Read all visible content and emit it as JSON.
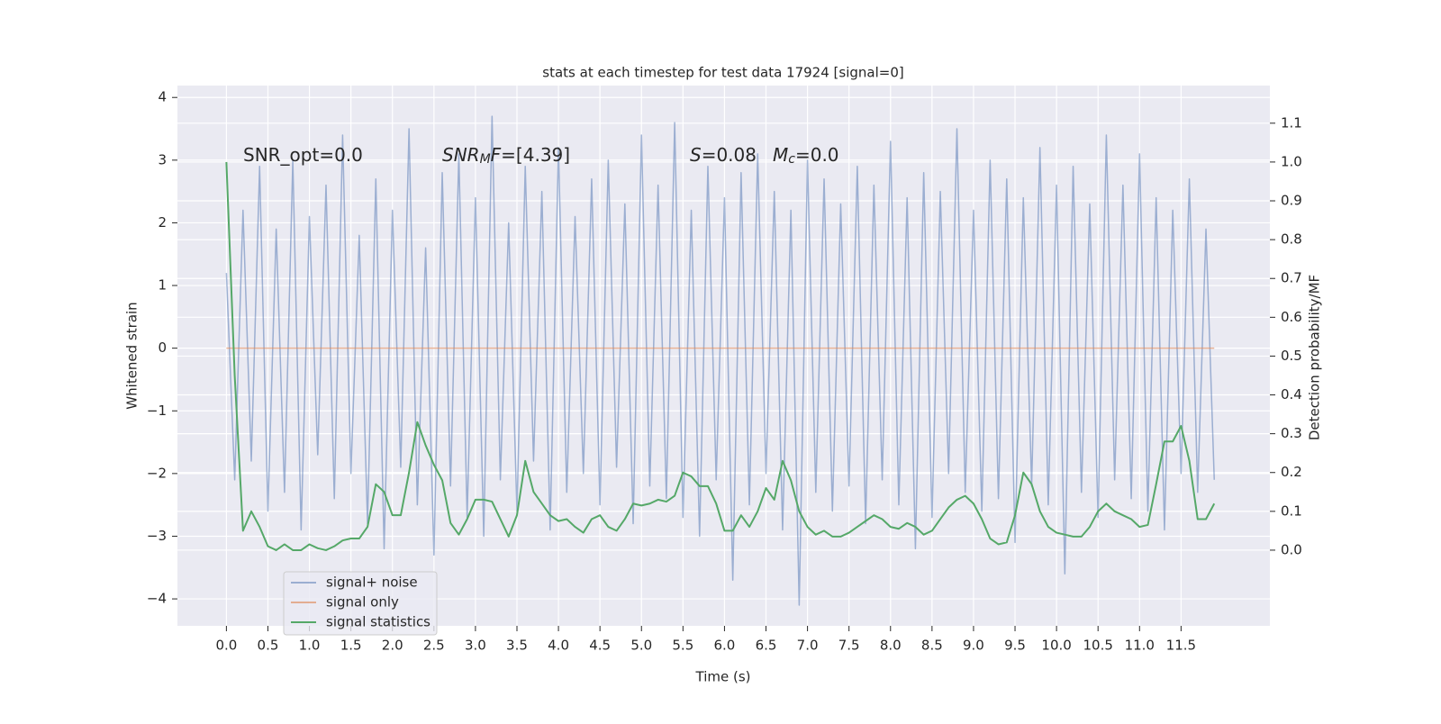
{
  "chart_data": {
    "type": "line",
    "title": "stats at each timestep for test data 17924 [signal=0]",
    "xlabel": "Time (s)",
    "ylabel": "Whitened strain",
    "y2label": "Detection probability/MF",
    "annotations": [
      [
        {
          "text": "SNR_opt=0.0",
          "style": "normal"
        }
      ],
      [
        {
          "text": "SNR",
          "style": "italic"
        },
        {
          "text": "M",
          "style": "sub"
        },
        {
          "text": "F",
          "style": "italic"
        },
        {
          "text": "=[4.39]",
          "style": "normal"
        }
      ],
      [
        {
          "text": "S",
          "style": "italic"
        },
        {
          "text": "=0.08",
          "style": "normal"
        }
      ],
      [
        {
          "text": "M",
          "style": "italic"
        },
        {
          "text": "c",
          "style": "sub"
        },
        {
          "text": "=0.0",
          "style": "normal"
        }
      ]
    ],
    "x": [
      0,
      0.1,
      0.2,
      0.3,
      0.4,
      0.5,
      0.6,
      0.7,
      0.8,
      0.9,
      1.0,
      1.1,
      1.2,
      1.3,
      1.4,
      1.5,
      1.6,
      1.7,
      1.8,
      1.9,
      2.0,
      2.1,
      2.2,
      2.3,
      2.4,
      2.5,
      2.6,
      2.7,
      2.8,
      2.9,
      3.0,
      3.1,
      3.2,
      3.3,
      3.4,
      3.5,
      3.6,
      3.7,
      3.8,
      3.9,
      4.0,
      4.1,
      4.2,
      4.3,
      4.4,
      4.5,
      4.6,
      4.7,
      4.8,
      4.9,
      5.0,
      5.1,
      5.2,
      5.3,
      5.4,
      5.5,
      5.6,
      5.7,
      5.8,
      5.9,
      6.0,
      6.1,
      6.2,
      6.3,
      6.4,
      6.5,
      6.6,
      6.7,
      6.8,
      6.9,
      7.0,
      7.1,
      7.2,
      7.3,
      7.4,
      7.5,
      7.6,
      7.7,
      7.8,
      7.9,
      8.0,
      8.1,
      8.2,
      8.3,
      8.4,
      8.5,
      8.6,
      8.7,
      8.8,
      8.9,
      9.0,
      9.1,
      9.2,
      9.3,
      9.4,
      9.5,
      9.6,
      9.7,
      9.8,
      9.9,
      10.0,
      10.1,
      10.2,
      10.3,
      10.4,
      10.5,
      10.6,
      10.7,
      10.8,
      10.9,
      11.0,
      11.1,
      11.2,
      11.3,
      11.4,
      11.5,
      11.6,
      11.7,
      11.8,
      11.9
    ],
    "series": [
      {
        "name": "signal+ noise",
        "color": "#4c72b0",
        "opacity": 0.5,
        "axis": "y",
        "values": [
          1.2,
          -2.1,
          2.2,
          -1.8,
          2.9,
          -2.6,
          1.9,
          -2.3,
          3.0,
          -2.9,
          2.1,
          -1.7,
          2.6,
          -2.4,
          3.4,
          -2.0,
          1.8,
          -2.8,
          2.7,
          -3.2,
          2.2,
          -1.9,
          3.5,
          -2.5,
          1.6,
          -3.3,
          2.8,
          -2.2,
          3.1,
          -2.7,
          2.4,
          -3.0,
          3.7,
          -2.1,
          2.0,
          -2.6,
          2.9,
          -1.8,
          2.5,
          -2.9,
          3.2,
          -2.3,
          2.1,
          -2.0,
          2.7,
          -2.5,
          3.0,
          -1.9,
          2.3,
          -2.8,
          3.4,
          -2.2,
          2.6,
          -2.4,
          3.6,
          -2.7,
          2.2,
          -3.0,
          2.9,
          -2.1,
          2.4,
          -3.7,
          2.8,
          -2.5,
          3.1,
          -2.0,
          2.5,
          -2.9,
          2.2,
          -4.1,
          3.0,
          -2.3,
          2.7,
          -2.6,
          2.3,
          -2.2,
          2.9,
          -2.8,
          2.6,
          -2.1,
          3.3,
          -2.5,
          2.4,
          -3.2,
          2.8,
          -2.7,
          2.5,
          -2.0,
          3.5,
          -2.3,
          2.2,
          -2.6,
          3.0,
          -2.4,
          2.7,
          -3.1,
          2.4,
          -2.2,
          3.2,
          -2.5,
          2.6,
          -3.6,
          2.9,
          -2.3,
          2.3,
          -2.7,
          3.4,
          -2.1,
          2.6,
          -2.4,
          3.1,
          -2.6,
          2.4,
          -2.9,
          2.2,
          -2.0,
          2.7,
          -2.3,
          1.9,
          -2.1
        ]
      },
      {
        "name": "signal only",
        "color": "#dd8452",
        "opacity": 0.6,
        "axis": "y",
        "values": [
          0,
          0,
          0,
          0,
          0,
          0,
          0,
          0,
          0,
          0,
          0,
          0,
          0,
          0,
          0,
          0,
          0,
          0,
          0,
          0,
          0,
          0,
          0,
          0,
          0,
          0,
          0,
          0,
          0,
          0,
          0,
          0,
          0,
          0,
          0,
          0,
          0,
          0,
          0,
          0,
          0,
          0,
          0,
          0,
          0,
          0,
          0,
          0,
          0,
          0,
          0,
          0,
          0,
          0,
          0,
          0,
          0,
          0,
          0,
          0,
          0,
          0,
          0,
          0,
          0,
          0,
          0,
          0,
          0,
          0,
          0,
          0,
          0,
          0,
          0,
          0,
          0,
          0,
          0,
          0,
          0,
          0,
          0,
          0,
          0,
          0,
          0,
          0,
          0,
          0,
          0,
          0,
          0,
          0,
          0,
          0,
          0,
          0,
          0,
          0,
          0,
          0,
          0,
          0,
          0,
          0,
          0,
          0,
          0,
          0,
          0,
          0,
          0,
          0,
          0,
          0,
          0,
          0,
          0,
          0
        ]
      },
      {
        "name": "signal statistics",
        "color": "#55a868",
        "opacity": 1,
        "axis": "y2",
        "values": [
          1.0,
          0.45,
          0.05,
          0.1,
          0.06,
          0.01,
          0.0,
          0.015,
          0.0,
          0.0,
          0.015,
          0.005,
          0.0,
          0.01,
          0.025,
          0.03,
          0.03,
          0.06,
          0.17,
          0.15,
          0.09,
          0.09,
          0.2,
          0.33,
          0.27,
          0.22,
          0.18,
          0.07,
          0.04,
          0.08,
          0.13,
          0.13,
          0.125,
          0.08,
          0.035,
          0.09,
          0.23,
          0.15,
          0.12,
          0.09,
          0.075,
          0.08,
          0.06,
          0.045,
          0.08,
          0.09,
          0.06,
          0.05,
          0.08,
          0.12,
          0.115,
          0.12,
          0.13,
          0.125,
          0.14,
          0.2,
          0.19,
          0.165,
          0.165,
          0.12,
          0.05,
          0.05,
          0.09,
          0.06,
          0.1,
          0.16,
          0.13,
          0.23,
          0.18,
          0.1,
          0.06,
          0.04,
          0.05,
          0.035,
          0.035,
          0.045,
          0.06,
          0.075,
          0.09,
          0.08,
          0.06,
          0.055,
          0.07,
          0.06,
          0.04,
          0.05,
          0.08,
          0.11,
          0.13,
          0.14,
          0.12,
          0.08,
          0.03,
          0.015,
          0.02,
          0.09,
          0.2,
          0.17,
          0.1,
          0.06,
          0.045,
          0.04,
          0.035,
          0.035,
          0.06,
          0.1,
          0.12,
          0.1,
          0.09,
          0.08,
          0.06,
          0.065,
          0.17,
          0.28,
          0.28,
          0.32,
          0.23,
          0.08,
          0.08,
          0.12
        ]
      }
    ],
    "xlim": [
      -0.59,
      12.57
    ],
    "ylim": [
      -4.43,
      4.19
    ],
    "y2lim": [
      -0.195,
      1.197
    ],
    "xticks": [
      {
        "value": 0,
        "label": "0.0"
      },
      0.5,
      {
        "value": 1,
        "label": "1.0"
      },
      1.5,
      {
        "value": 2,
        "label": "2.0"
      },
      2.5,
      {
        "value": 3,
        "label": "3.0"
      },
      3.5,
      {
        "value": 4,
        "label": "4.0"
      },
      4.5,
      {
        "value": 5,
        "label": "5.0"
      },
      5.5,
      {
        "value": 6,
        "label": "6.0"
      },
      6.5,
      {
        "value": 7,
        "label": "7.0"
      },
      7.5,
      {
        "value": 8,
        "label": "8.0"
      },
      8.5,
      {
        "value": 9,
        "label": "9.0"
      },
      9.5,
      {
        "value": 10,
        "label": "10.0"
      },
      10.5,
      {
        "value": 11,
        "label": "11.0"
      },
      11.5
    ],
    "yticks": [
      {
        "value": -4,
        "label": "−4"
      },
      {
        "value": -3,
        "label": "−3"
      },
      {
        "value": -2,
        "label": "−2"
      },
      {
        "value": -1,
        "label": "−1"
      },
      0,
      1,
      2,
      3,
      4
    ],
    "y2ticks": [
      {
        "value": 0,
        "label": "0.0"
      },
      0.1,
      0.2,
      0.3,
      0.4,
      0.5,
      0.6,
      0.7,
      0.8,
      0.9,
      {
        "value": 1,
        "label": "1.0"
      },
      1.1
    ],
    "grid": true,
    "legend": "lower left"
  }
}
